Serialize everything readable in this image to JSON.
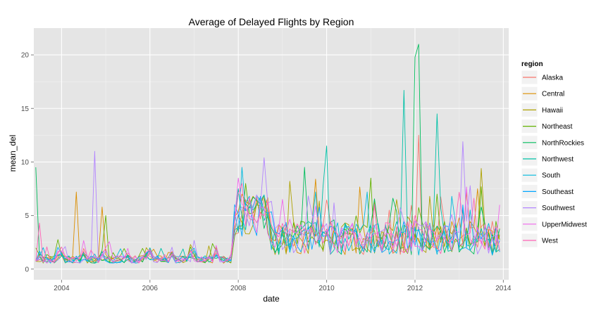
{
  "chart_data": {
    "type": "line",
    "title": "Average of Delayed Flights by Region",
    "xlabel": "date",
    "ylabel": "mean_del",
    "xlim": [
      "2003-05-15",
      "2014-02-15"
    ],
    "ylim": [
      -1,
      22.5
    ],
    "x_ticks": [
      "2004",
      "2006",
      "2008",
      "2010",
      "2012",
      "2014"
    ],
    "x_tick_dates": [
      "2004-01-01",
      "2006-01-01",
      "2008-01-01",
      "2010-01-01",
      "2012-01-01",
      "2014-01-01"
    ],
    "y_ticks": [
      0,
      5,
      10,
      15,
      20
    ],
    "grid": true,
    "legend_title": "region",
    "legend_position": "right",
    "period": {
      "start": "2003-06",
      "end": "2013-12",
      "frequency": "monthly"
    },
    "series": [
      {
        "name": "Alaska",
        "color": "#F8766D",
        "seed": 11,
        "peaks": [
          [
            "2012-02",
            12.5
          ],
          [
            "2008-03",
            6.5
          ],
          [
            "2011-06",
            5.5
          ]
        ]
      },
      {
        "name": "Central",
        "color": "#DB8E00",
        "seed": 23,
        "peaks": [
          [
            "2004-05",
            7.2
          ],
          [
            "2004-12",
            5.8
          ],
          [
            "2008-02",
            7.0
          ],
          [
            "2009-10",
            8.4
          ],
          [
            "2011-02",
            6.5
          ],
          [
            "2013-06",
            7.5
          ]
        ]
      },
      {
        "name": "Hawaii",
        "color": "#AEA200",
        "seed": 37,
        "peaks": [
          [
            "2013-07",
            9.4
          ],
          [
            "2009-03",
            8.2
          ],
          [
            "2012-05",
            6.8
          ]
        ]
      },
      {
        "name": "Northeast",
        "color": "#64B200",
        "seed": 41,
        "peaks": [
          [
            "2005-01",
            5.0
          ],
          [
            "2008-03",
            8.0
          ],
          [
            "2011-01",
            8.5
          ],
          [
            "2012-07",
            7.0
          ]
        ]
      },
      {
        "name": "NorthRockies",
        "color": "#00BD5C",
        "seed": 53,
        "peaks": [
          [
            "2003-06",
            9.5
          ],
          [
            "2012-02",
            21.0
          ],
          [
            "2012-01",
            19.8
          ],
          [
            "2009-07",
            9.5
          ]
        ]
      },
      {
        "name": "Northwest",
        "color": "#00C1A7",
        "seed": 67,
        "peaks": [
          [
            "2011-10",
            16.7
          ],
          [
            "2012-07",
            14.5
          ],
          [
            "2010-01",
            11.5
          ],
          [
            "2008-01",
            7.5
          ]
        ]
      },
      {
        "name": "South",
        "color": "#00BADE",
        "seed": 71,
        "peaks": [
          [
            "2008-02",
            9.5
          ],
          [
            "2010-12",
            7.2
          ],
          [
            "2012-11",
            6.8
          ]
        ]
      },
      {
        "name": "Southeast",
        "color": "#00A6FF",
        "seed": 83,
        "peaks": [
          [
            "2008-03",
            6.2
          ],
          [
            "2009-11",
            5.8
          ],
          [
            "2013-02",
            6.0
          ]
        ]
      },
      {
        "name": "Southwest",
        "color": "#B385FF",
        "seed": 97,
        "peaks": [
          [
            "2004-10",
            11.0
          ],
          [
            "2008-08",
            10.4
          ],
          [
            "2013-02",
            11.9
          ],
          [
            "2004-02",
            2.1
          ]
        ]
      },
      {
        "name": "UpperMidwest",
        "color": "#EF67EB",
        "seed": 103,
        "peaks": [
          [
            "2008-01",
            8.5
          ],
          [
            "2009-01",
            6.5
          ],
          [
            "2013-12",
            6.0
          ]
        ]
      },
      {
        "name": "West",
        "color": "#FF63B6",
        "seed": 109,
        "peaks": [
          [
            "2003-07",
            4.3
          ],
          [
            "2008-02",
            8.0
          ],
          [
            "2012-01",
            5.0
          ]
        ]
      }
    ]
  }
}
